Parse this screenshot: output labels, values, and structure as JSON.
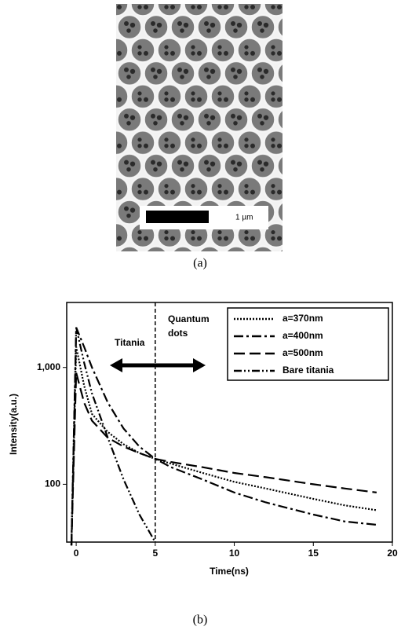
{
  "image_panel": {
    "scale_bar_label": "1 µm",
    "caption": "(a)"
  },
  "chart_data": {
    "type": "line",
    "caption": "(b)",
    "x_label": "Time(ns)",
    "y_label": "Intensity(a.u.)",
    "log_y": true,
    "xlim": [
      -0.6,
      20
    ],
    "xticks": [
      0,
      5,
      10,
      15,
      20
    ],
    "ylim": [
      32,
      3600
    ],
    "yticks": [
      100,
      {
        "value": 1000,
        "label": "1,000"
      }
    ],
    "vline": 5,
    "annotations": {
      "left": "Titania",
      "right": [
        "Quantum",
        "dots"
      ]
    },
    "x": [
      -0.3,
      0,
      0.5,
      1,
      2,
      3,
      4,
      5,
      6,
      8,
      10,
      12,
      15,
      17,
      19
    ],
    "series": [
      {
        "name": "a=370nm",
        "color": "#000000",
        "dash": "dotted",
        "values": [
          30,
          1500,
          700,
          400,
          280,
          220,
          185,
          165,
          150,
          125,
          105,
          92,
          75,
          66,
          60
        ]
      },
      {
        "name": "a=400nm",
        "color": "#000000",
        "dash": "dash-dot",
        "values": [
          30,
          2200,
          1500,
          1000,
          500,
          300,
          210,
          165,
          140,
          110,
          85,
          70,
          55,
          48,
          45
        ]
      },
      {
        "name": "a=500nm",
        "color": "#000000",
        "dash": "long-dash",
        "values": [
          30,
          900,
          500,
          350,
          250,
          210,
          185,
          165,
          155,
          140,
          125,
          115,
          100,
          92,
          85
        ]
      },
      {
        "name": "Bare titania",
        "color": "#000000",
        "dash": "dash-dot-dot",
        "values": [
          30,
          2200,
          1100,
          600,
          250,
          110,
          55,
          32,
          null,
          null,
          null,
          null,
          null,
          null,
          null
        ]
      }
    ],
    "legend": "top-right"
  }
}
